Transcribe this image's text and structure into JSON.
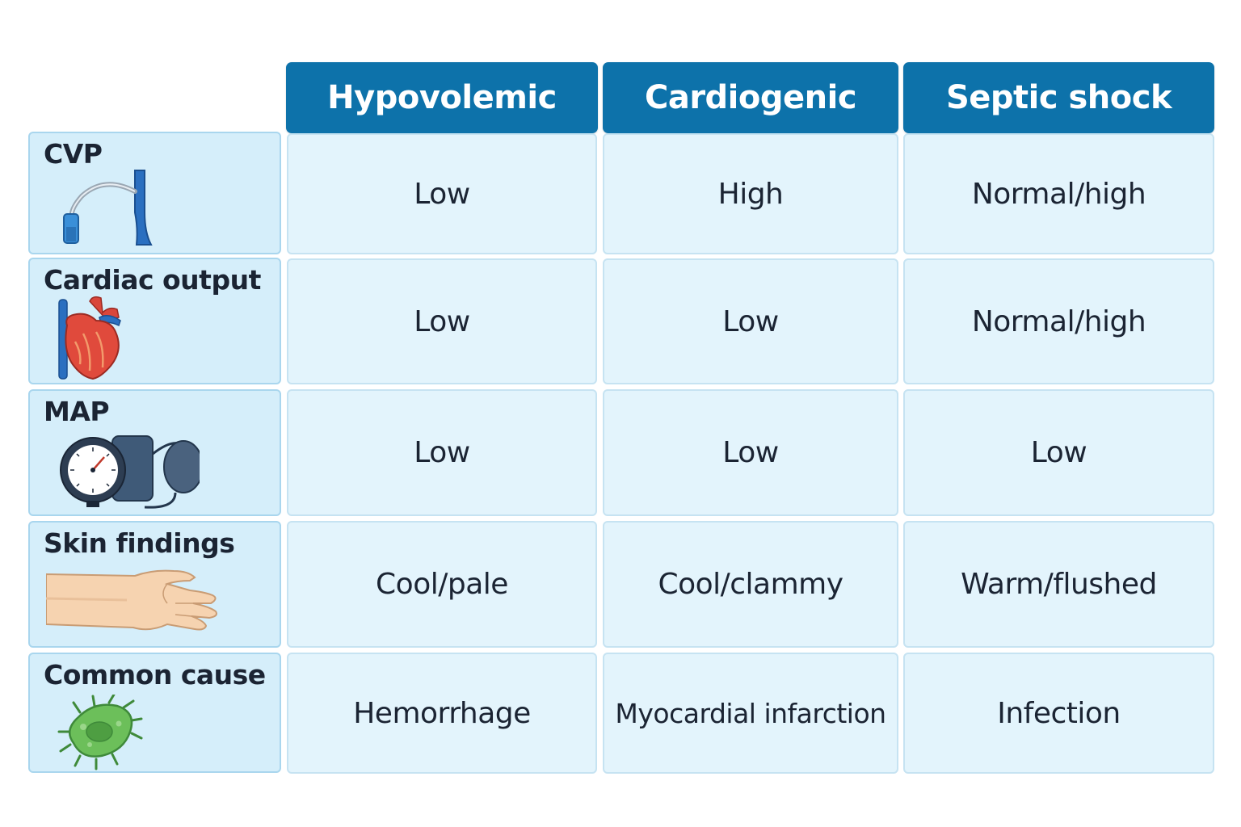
{
  "columns": [
    "Hypovolemic",
    "Cardiogenic",
    "Septic shock"
  ],
  "rows": [
    {
      "label": "CVP",
      "icon": "central-line-vein-icon",
      "values": [
        "Low",
        "High",
        "Normal/high"
      ]
    },
    {
      "label": "Cardiac output",
      "icon": "heart-icon",
      "values": [
        "Low",
        "Low",
        "Normal/high"
      ]
    },
    {
      "label": "MAP",
      "icon": "blood-pressure-cuff-icon",
      "values": [
        "Low",
        "Low",
        "Low"
      ]
    },
    {
      "label": "Skin findings",
      "icon": "hand-arm-icon",
      "values": [
        "Cool/pale",
        "Cool/clammy",
        "Warm/flushed"
      ]
    },
    {
      "label": "Common cause",
      "icon": "bacterium-icon",
      "values": [
        "Hemorrhage",
        "Myocardial infarction",
        "Infection"
      ]
    }
  ],
  "colors": {
    "header_bg": "#0d72aa",
    "label_bg": "#d5eefa",
    "cell_bg": "#e3f4fc",
    "text": "#1b2433"
  }
}
